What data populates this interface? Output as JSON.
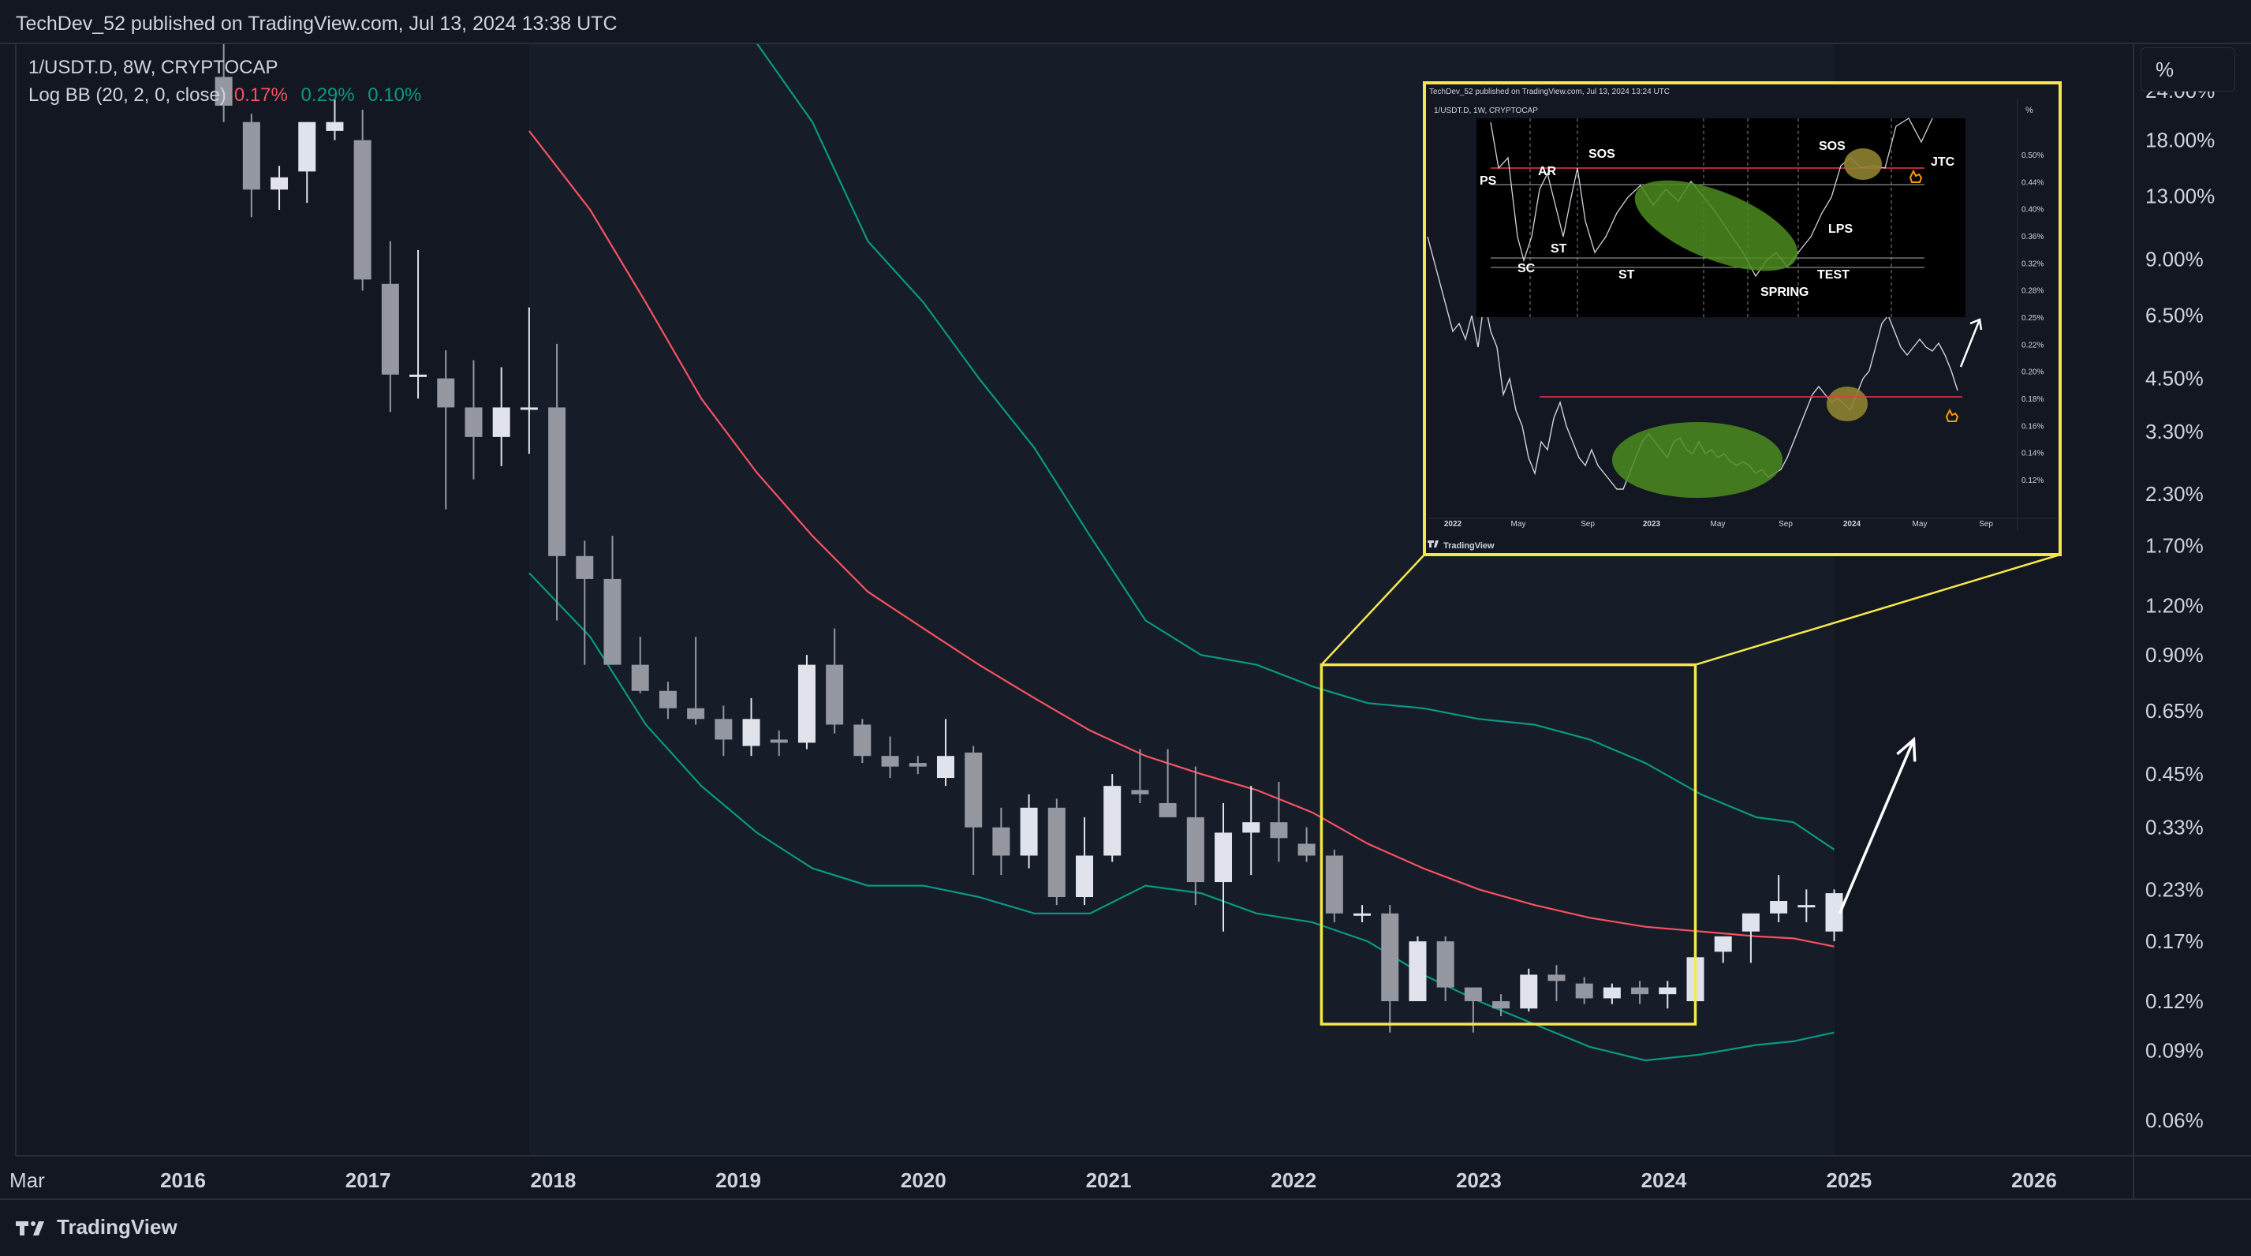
{
  "header": {
    "published_line": "TechDev_52 published on TradingView.com, Jul 13, 2024 13:38 UTC"
  },
  "legend": {
    "symbol_line": "1/USDT.D, 8W, CRYPTOCAP",
    "indicator_name": "Log BB (20, 2, 0, close)",
    "basis_value": "0.17%",
    "upper_value": "0.29%",
    "lower_value": "0.10%"
  },
  "axis_unit_button": "%",
  "footer": {
    "brand": "TradingView"
  },
  "colors": {
    "background": "#131722",
    "up_candle": "#e0e3eb",
    "down_candle": "#9598a1",
    "basis_line": "#f7525f",
    "band_line": "#089981",
    "highlight_box": "#f5e74a",
    "arrow": "#ffffff"
  },
  "chart_data": {
    "type": "candlestick",
    "symbol": "1/USDT.D",
    "timeframe": "8W",
    "y_scale": "log",
    "y_unit": "%",
    "y_ticks": [
      "24.00%",
      "18.00%",
      "13.00%",
      "9.00%",
      "6.50%",
      "4.50%",
      "3.30%",
      "2.30%",
      "1.70%",
      "1.20%",
      "0.90%",
      "0.65%",
      "0.45%",
      "0.33%",
      "0.23%",
      "0.17%",
      "0.12%",
      "0.09%",
      "0.06%"
    ],
    "y_tick_values": [
      24.0,
      18.0,
      13.0,
      9.0,
      6.5,
      4.5,
      3.3,
      2.3,
      1.7,
      1.2,
      0.9,
      0.65,
      0.45,
      0.33,
      0.23,
      0.17,
      0.12,
      0.09,
      0.06
    ],
    "x_ticks": [
      "Mar",
      "2016",
      "2017",
      "2018",
      "2019",
      "2020",
      "2021",
      "2022",
      "2023",
      "2024",
      "2025",
      "2026"
    ],
    "x_tick_values": [
      2015.17,
      2016,
      2017,
      2018,
      2019,
      2020,
      2021,
      2022,
      2023,
      2024,
      2025,
      2026
    ],
    "x_range": [
      2015.17,
      2026.55
    ],
    "y_range": [
      0.05,
      30
    ],
    "candles": [
      {
        "t": 2016.22,
        "o": 26.0,
        "h": 40.0,
        "l": 20.0,
        "c": 22.0
      },
      {
        "t": 2016.37,
        "o": 20.0,
        "h": 21.0,
        "l": 11.5,
        "c": 13.5
      },
      {
        "t": 2016.52,
        "o": 13.5,
        "h": 15.5,
        "l": 12.0,
        "c": 14.5
      },
      {
        "t": 2016.67,
        "o": 15.0,
        "h": 20.0,
        "l": 12.5,
        "c": 20.0
      },
      {
        "t": 2016.82,
        "o": 19.0,
        "h": 23.0,
        "l": 18.0,
        "c": 20.0
      },
      {
        "t": 2016.97,
        "o": 18.0,
        "h": 21.5,
        "l": 7.5,
        "c": 8.0
      },
      {
        "t": 2017.12,
        "o": 7.8,
        "h": 10.0,
        "l": 3.7,
        "c": 4.6
      },
      {
        "t": 2017.27,
        "o": 4.6,
        "h": 9.5,
        "l": 4.0,
        "c": 4.6
      },
      {
        "t": 2017.42,
        "o": 4.5,
        "h": 5.3,
        "l": 2.1,
        "c": 3.8
      },
      {
        "t": 2017.57,
        "o": 3.8,
        "h": 5.0,
        "l": 2.5,
        "c": 3.2
      },
      {
        "t": 2017.72,
        "o": 3.2,
        "h": 4.8,
        "l": 2.7,
        "c": 3.8
      },
      {
        "t": 2017.87,
        "o": 3.8,
        "h": 6.8,
        "l": 2.9,
        "c": 3.8
      },
      {
        "t": 2018.02,
        "o": 3.8,
        "h": 5.5,
        "l": 1.1,
        "c": 1.6
      },
      {
        "t": 2018.17,
        "o": 1.6,
        "h": 1.75,
        "l": 0.85,
        "c": 1.4
      },
      {
        "t": 2018.32,
        "o": 1.4,
        "h": 1.8,
        "l": 0.85,
        "c": 0.85
      },
      {
        "t": 2018.47,
        "o": 0.85,
        "h": 1.0,
        "l": 0.72,
        "c": 0.73
      },
      {
        "t": 2018.62,
        "o": 0.73,
        "h": 0.77,
        "l": 0.62,
        "c": 0.66
      },
      {
        "t": 2018.77,
        "o": 0.66,
        "h": 1.0,
        "l": 0.6,
        "c": 0.62
      },
      {
        "t": 2018.92,
        "o": 0.62,
        "h": 0.67,
        "l": 0.5,
        "c": 0.55
      },
      {
        "t": 2019.07,
        "o": 0.53,
        "h": 0.7,
        "l": 0.5,
        "c": 0.62
      },
      {
        "t": 2019.22,
        "o": 0.55,
        "h": 0.58,
        "l": 0.5,
        "c": 0.54
      },
      {
        "t": 2019.37,
        "o": 0.54,
        "h": 0.9,
        "l": 0.52,
        "c": 0.85
      },
      {
        "t": 2019.52,
        "o": 0.85,
        "h": 1.05,
        "l": 0.57,
        "c": 0.6
      },
      {
        "t": 2019.67,
        "o": 0.6,
        "h": 0.62,
        "l": 0.48,
        "c": 0.5
      },
      {
        "t": 2019.82,
        "o": 0.5,
        "h": 0.56,
        "l": 0.44,
        "c": 0.47
      },
      {
        "t": 2019.97,
        "o": 0.48,
        "h": 0.5,
        "l": 0.45,
        "c": 0.47
      },
      {
        "t": 2020.12,
        "o": 0.44,
        "h": 0.62,
        "l": 0.42,
        "c": 0.5
      },
      {
        "t": 2020.27,
        "o": 0.51,
        "h": 0.53,
        "l": 0.25,
        "c": 0.33
      },
      {
        "t": 2020.42,
        "o": 0.33,
        "h": 0.37,
        "l": 0.25,
        "c": 0.28
      },
      {
        "t": 2020.57,
        "o": 0.28,
        "h": 0.4,
        "l": 0.26,
        "c": 0.37
      },
      {
        "t": 2020.72,
        "o": 0.37,
        "h": 0.39,
        "l": 0.21,
        "c": 0.22
      },
      {
        "t": 2020.87,
        "o": 0.22,
        "h": 0.35,
        "l": 0.21,
        "c": 0.28
      },
      {
        "t": 2021.02,
        "o": 0.28,
        "h": 0.45,
        "l": 0.27,
        "c": 0.42
      },
      {
        "t": 2021.17,
        "o": 0.41,
        "h": 0.52,
        "l": 0.38,
        "c": 0.4
      },
      {
        "t": 2021.32,
        "o": 0.38,
        "h": 0.52,
        "l": 0.35,
        "c": 0.35
      },
      {
        "t": 2021.47,
        "o": 0.35,
        "h": 0.47,
        "l": 0.21,
        "c": 0.24
      },
      {
        "t": 2021.62,
        "o": 0.24,
        "h": 0.38,
        "l": 0.18,
        "c": 0.32
      },
      {
        "t": 2021.77,
        "o": 0.32,
        "h": 0.42,
        "l": 0.25,
        "c": 0.34
      },
      {
        "t": 2021.92,
        "o": 0.34,
        "h": 0.43,
        "l": 0.27,
        "c": 0.31
      },
      {
        "t": 2022.07,
        "o": 0.3,
        "h": 0.33,
        "l": 0.27,
        "c": 0.28
      },
      {
        "t": 2022.22,
        "o": 0.28,
        "h": 0.29,
        "l": 0.19,
        "c": 0.2
      },
      {
        "t": 2022.37,
        "o": 0.2,
        "h": 0.21,
        "l": 0.19,
        "c": 0.2
      },
      {
        "t": 2022.52,
        "o": 0.2,
        "h": 0.21,
        "l": 0.1,
        "c": 0.12
      },
      {
        "t": 2022.67,
        "o": 0.12,
        "h": 0.175,
        "l": 0.12,
        "c": 0.17
      },
      {
        "t": 2022.82,
        "o": 0.17,
        "h": 0.175,
        "l": 0.12,
        "c": 0.13
      },
      {
        "t": 2022.97,
        "o": 0.13,
        "h": 0.13,
        "l": 0.1,
        "c": 0.12
      },
      {
        "t": 2023.12,
        "o": 0.12,
        "h": 0.125,
        "l": 0.11,
        "c": 0.115
      },
      {
        "t": 2023.27,
        "o": 0.115,
        "h": 0.145,
        "l": 0.113,
        "c": 0.14
      },
      {
        "t": 2023.42,
        "o": 0.14,
        "h": 0.148,
        "l": 0.12,
        "c": 0.135
      },
      {
        "t": 2023.57,
        "o": 0.133,
        "h": 0.138,
        "l": 0.118,
        "c": 0.122
      },
      {
        "t": 2023.72,
        "o": 0.122,
        "h": 0.133,
        "l": 0.118,
        "c": 0.13
      },
      {
        "t": 2023.87,
        "o": 0.13,
        "h": 0.135,
        "l": 0.118,
        "c": 0.125
      },
      {
        "t": 2024.02,
        "o": 0.125,
        "h": 0.135,
        "l": 0.115,
        "c": 0.13
      },
      {
        "t": 2024.17,
        "o": 0.12,
        "h": 0.16,
        "l": 0.118,
        "c": 0.155
      },
      {
        "t": 2024.32,
        "o": 0.16,
        "h": 0.175,
        "l": 0.15,
        "c": 0.175
      },
      {
        "t": 2024.47,
        "o": 0.18,
        "h": 0.2,
        "l": 0.15,
        "c": 0.2
      },
      {
        "t": 2024.62,
        "o": 0.2,
        "h": 0.25,
        "l": 0.19,
        "c": 0.215
      },
      {
        "t": 2024.77,
        "o": 0.21,
        "h": 0.23,
        "l": 0.19,
        "c": 0.21
      },
      {
        "t": 2024.92,
        "o": 0.18,
        "h": 0.23,
        "l": 0.17,
        "c": 0.225
      }
    ],
    "bb_basis": [
      [
        2017.87,
        19.0
      ],
      [
        2018.2,
        12.0
      ],
      [
        2018.5,
        7.0
      ],
      [
        2018.8,
        4.0
      ],
      [
        2019.1,
        2.6
      ],
      [
        2019.4,
        1.8
      ],
      [
        2019.7,
        1.3
      ],
      [
        2020.0,
        1.05
      ],
      [
        2020.3,
        0.85
      ],
      [
        2020.6,
        0.7
      ],
      [
        2020.9,
        0.58
      ],
      [
        2021.2,
        0.5
      ],
      [
        2021.5,
        0.45
      ],
      [
        2021.8,
        0.41
      ],
      [
        2022.1,
        0.36
      ],
      [
        2022.4,
        0.3
      ],
      [
        2022.7,
        0.26
      ],
      [
        2023.0,
        0.23
      ],
      [
        2023.3,
        0.21
      ],
      [
        2023.6,
        0.195
      ],
      [
        2023.9,
        0.185
      ],
      [
        2024.2,
        0.18
      ],
      [
        2024.5,
        0.175
      ],
      [
        2024.7,
        0.173
      ],
      [
        2024.92,
        0.165
      ]
    ],
    "bb_upper": [
      [
        2019.1,
        40.0
      ],
      [
        2019.4,
        20.0
      ],
      [
        2019.7,
        10.0
      ],
      [
        2020.0,
        7.0
      ],
      [
        2020.3,
        4.5
      ],
      [
        2020.6,
        3.0
      ],
      [
        2020.9,
        1.8
      ],
      [
        2021.2,
        1.1
      ],
      [
        2021.5,
        0.9
      ],
      [
        2021.8,
        0.85
      ],
      [
        2022.1,
        0.75
      ],
      [
        2022.4,
        0.68
      ],
      [
        2022.7,
        0.66
      ],
      [
        2023.0,
        0.62
      ],
      [
        2023.3,
        0.6
      ],
      [
        2023.6,
        0.55
      ],
      [
        2023.9,
        0.48
      ],
      [
        2024.2,
        0.4
      ],
      [
        2024.5,
        0.35
      ],
      [
        2024.7,
        0.34
      ],
      [
        2024.92,
        0.29
      ]
    ],
    "bb_lower": [
      [
        2017.87,
        1.45
      ],
      [
        2018.2,
        1.0
      ],
      [
        2018.5,
        0.6
      ],
      [
        2018.8,
        0.42
      ],
      [
        2019.1,
        0.32
      ],
      [
        2019.4,
        0.26
      ],
      [
        2019.7,
        0.235
      ],
      [
        2020.0,
        0.235
      ],
      [
        2020.3,
        0.22
      ],
      [
        2020.6,
        0.2
      ],
      [
        2020.9,
        0.2
      ],
      [
        2021.2,
        0.235
      ],
      [
        2021.5,
        0.225
      ],
      [
        2021.8,
        0.2
      ],
      [
        2022.1,
        0.19
      ],
      [
        2022.4,
        0.17
      ],
      [
        2022.7,
        0.14
      ],
      [
        2023.0,
        0.12
      ],
      [
        2023.3,
        0.105
      ],
      [
        2023.6,
        0.092
      ],
      [
        2023.9,
        0.085
      ],
      [
        2024.2,
        0.088
      ],
      [
        2024.5,
        0.093
      ],
      [
        2024.7,
        0.095
      ],
      [
        2024.92,
        0.1
      ]
    ],
    "highlight_box": {
      "x": [
        2022.15,
        2024.17
      ],
      "y": [
        0.105,
        0.85
      ]
    },
    "projection_arrow": {
      "from": [
        2024.95,
        0.2
      ],
      "to": [
        2025.35,
        0.55
      ]
    }
  },
  "inset": {
    "header": "TechDev_52 published on TradingView.com, Jul 13, 2024 13:24 UTC",
    "symbol": "1/USDT.D, 1W, CRYPTOCAP",
    "unit": "%",
    "y_ticks": [
      "0.50%",
      "0.44%",
      "0.40%",
      "0.36%",
      "0.32%",
      "0.28%",
      "0.25%",
      "0.22%",
      "0.20%",
      "0.18%",
      "0.16%",
      "0.14%",
      "0.12%"
    ],
    "x_ticks": [
      "2022",
      "May",
      "Sep",
      "2023",
      "May",
      "Sep",
      "2024",
      "May",
      "Sep"
    ],
    "wyckoff_labels": [
      "PS",
      "AR",
      "SOS",
      "SC",
      "ST",
      "ST",
      "SPRING",
      "TEST",
      "SOS",
      "LPS",
      "JTC"
    ],
    "brand": "TradingView"
  }
}
